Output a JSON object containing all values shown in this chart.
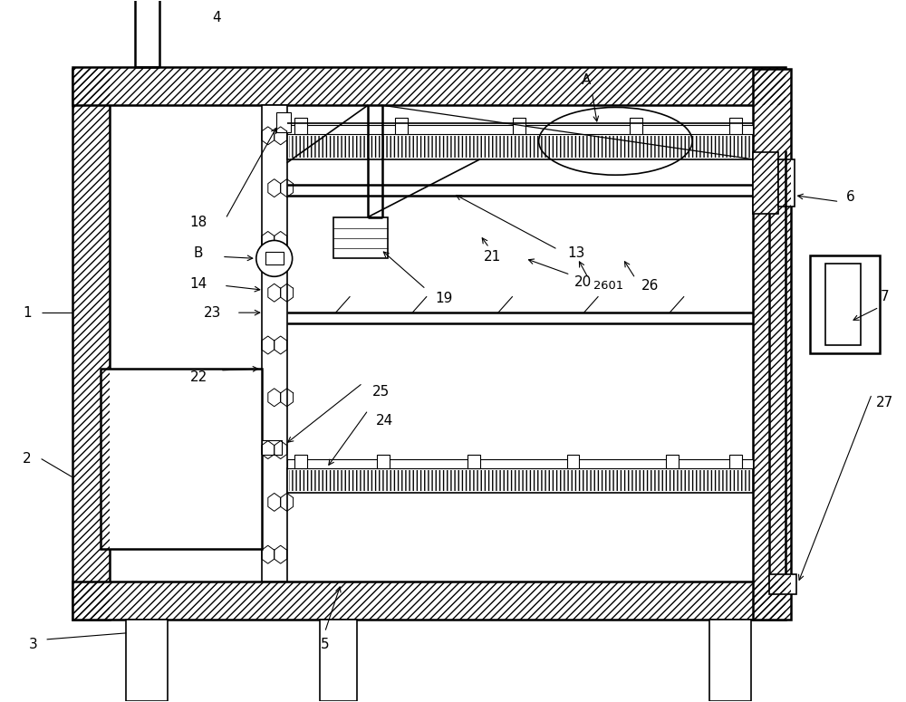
{
  "bg_color": "#ffffff",
  "lc": "#000000",
  "figsize": [
    10.0,
    7.75
  ],
  "dpi": 100,
  "lw": 1.2,
  "lw2": 1.8,
  "fs": 11
}
